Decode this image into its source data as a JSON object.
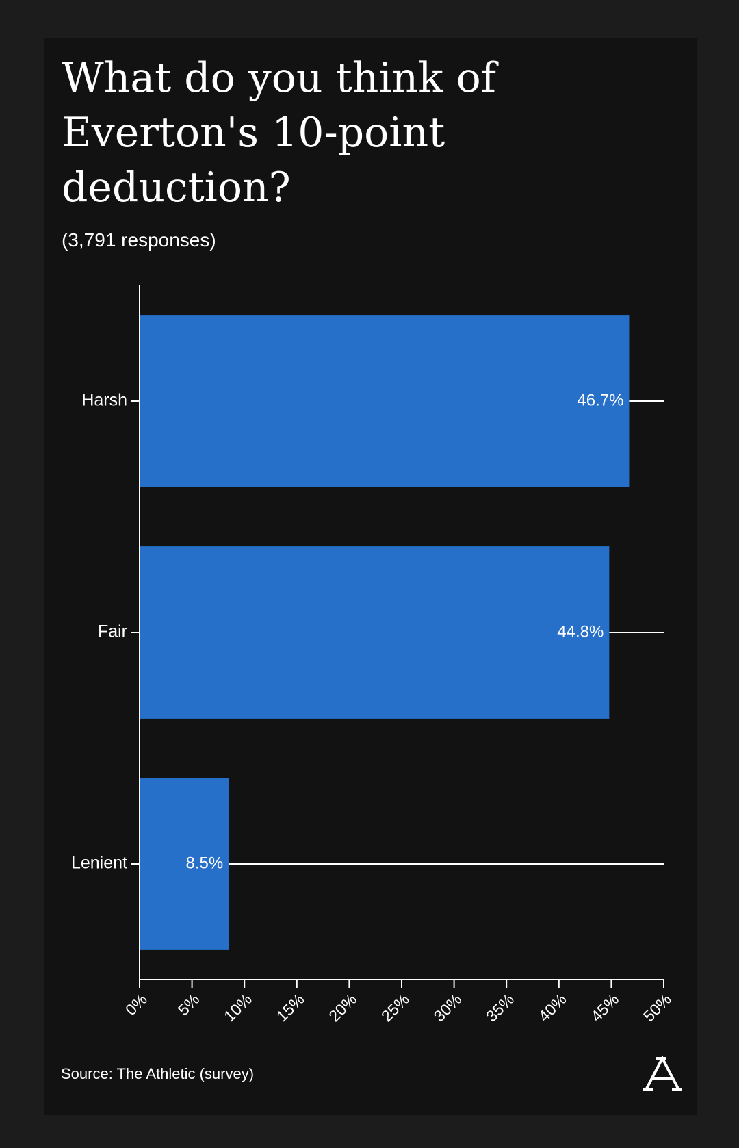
{
  "chart_data": {
    "type": "bar",
    "orientation": "horizontal",
    "title": "What do you think of Everton's 10-point deduction?",
    "subtitle": "(3,791 responses)",
    "source": "Source: The Athletic (survey)",
    "categories": [
      "Harsh",
      "Fair",
      "Lenient"
    ],
    "values": [
      46.7,
      44.8,
      8.5
    ],
    "value_labels": [
      "46.7%",
      "44.8%",
      "8.5%"
    ],
    "color": "#2770c9",
    "xlim": [
      0,
      50
    ],
    "xticks": [
      {
        "value": 0,
        "label": "0%"
      },
      {
        "value": 5,
        "label": "5%"
      },
      {
        "value": 10,
        "label": "10%"
      },
      {
        "value": 15,
        "label": "15%"
      },
      {
        "value": 20,
        "label": "20%"
      },
      {
        "value": 25,
        "label": "25%"
      },
      {
        "value": 30,
        "label": "30%"
      },
      {
        "value": 35,
        "label": "35%"
      },
      {
        "value": 40,
        "label": "40%"
      },
      {
        "value": 45,
        "label": "45%"
      },
      {
        "value": 50,
        "label": "50%"
      }
    ]
  }
}
